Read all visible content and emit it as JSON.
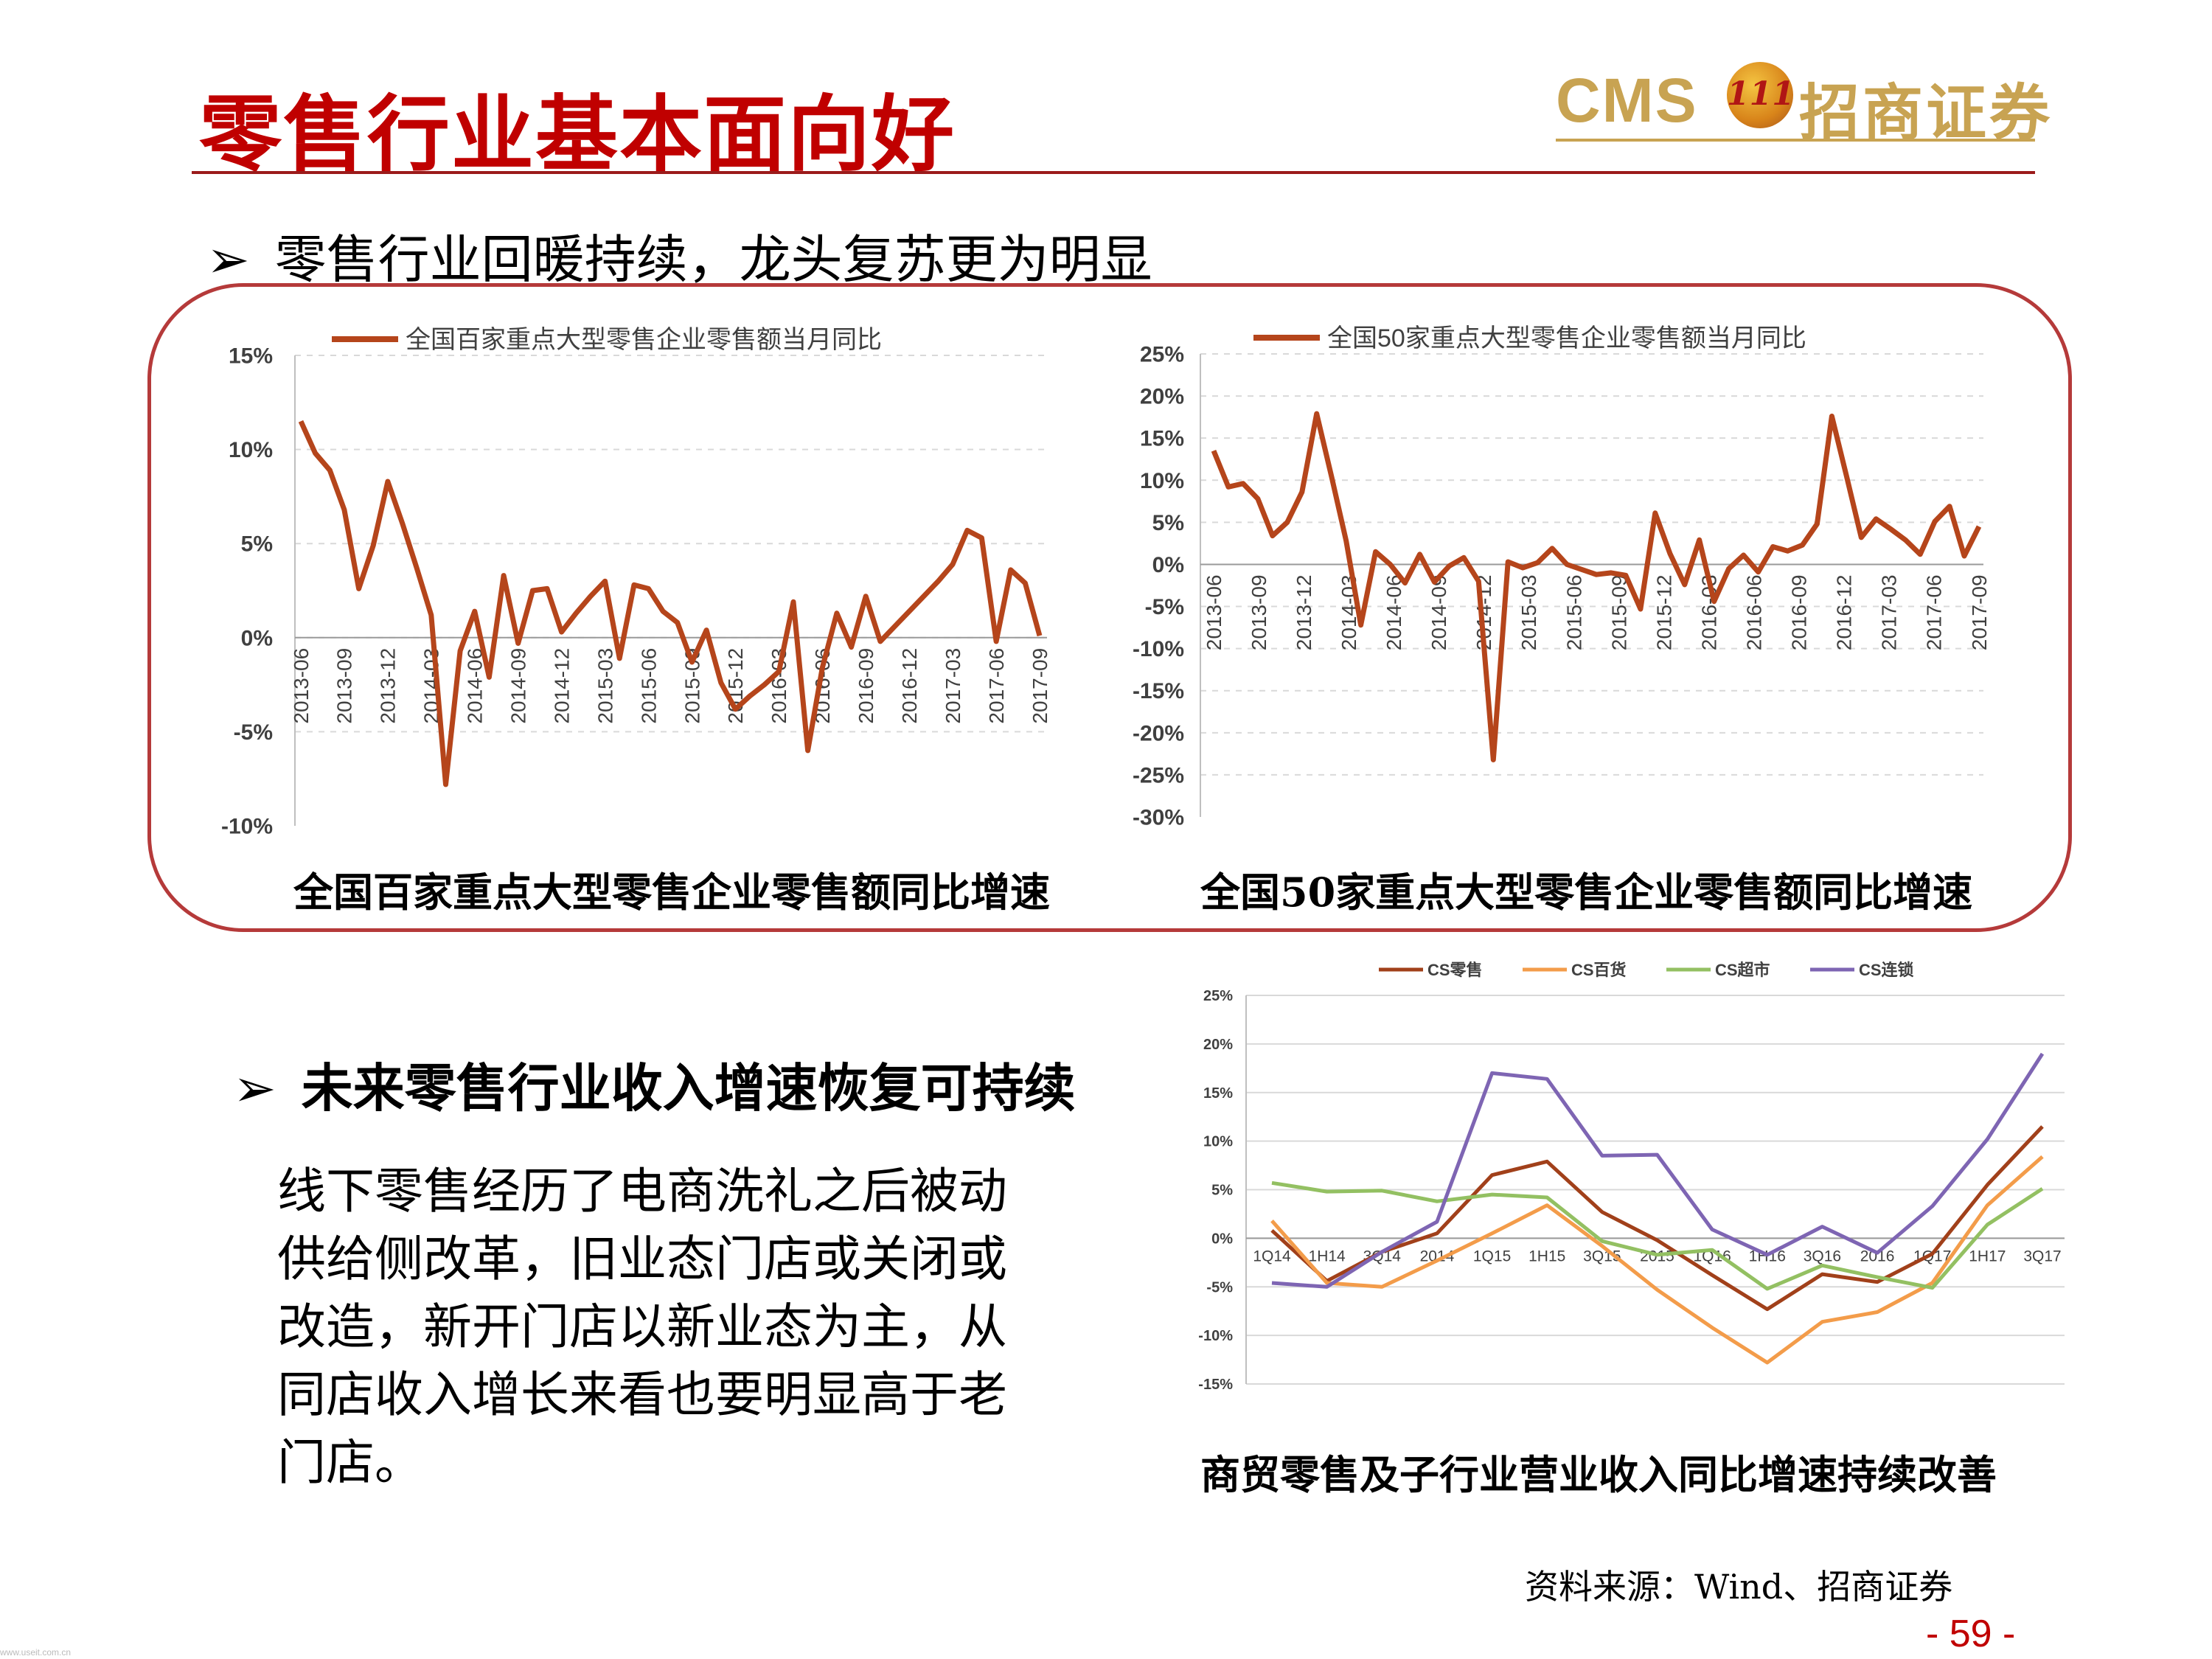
{
  "header": {
    "title": "零售行业基本面向好",
    "logo_cms": "CMS",
    "logo_badge": "111",
    "logo_cn": "招商证券"
  },
  "bullets": {
    "b1": "零售行业回暖持续，龙头复苏更为明显",
    "b2": "未来零售行业收入增速恢复可持续",
    "arrow": "➢"
  },
  "paragraph": [
    "线下零售经历了电商洗礼之后被动",
    "供给侧改革，旧业态门店或关闭或",
    "改造，新开门店以新业态为主，从",
    "同店收入增长来看也要明显高于老",
    "门店。"
  ],
  "captions": {
    "chart1": "全国百家重点大型零售企业零售额同比增速",
    "chart2": "全国50家重点大型零售企业零售额同比增速",
    "chart3": "商贸零售及子行业营业收入同比增速持续改善"
  },
  "footer": {
    "source": "资料来源：Wind、招商证券",
    "page": "- 59 -",
    "watermark": "www.useit.com.cn"
  },
  "colors": {
    "title_red": "#c00000",
    "series_brown": "#b5451b",
    "logo_gold": "#c8a352",
    "frame": "#b53a3a"
  },
  "chart_data": [
    {
      "type": "line",
      "title": "",
      "legend": "全国百家重点大型零售企业零售额当月同比",
      "legend_position": "top",
      "ylim": [
        -10,
        15
      ],
      "yticks": [
        "15%",
        "10%",
        "5%",
        "0%",
        "-5%",
        "-10%"
      ],
      "ytick_values": [
        15,
        10,
        5,
        0,
        -5,
        -10
      ],
      "xticks": [
        "2013-06",
        "2013-09",
        "2013-12",
        "2014-03",
        "2014-06",
        "2014-09",
        "2014-12",
        "2015-03",
        "2015-06",
        "2015-09",
        "2015-12",
        "2016-03",
        "2016-06",
        "2016-09",
        "2016-12",
        "2017-03",
        "2017-06",
        "2017-09"
      ],
      "grid": true,
      "series": [
        {
          "name": "全国百家重点大型零售企业零售额当月同比",
          "color": "#b5451b",
          "values": [
            11.5,
            9.8,
            8.9,
            6.8,
            2.6,
            4.9,
            8.3,
            6.1,
            3.7,
            1.2,
            -7.8,
            -0.7,
            1.4,
            -2.1,
            3.3,
            -0.3,
            2.5,
            2.6,
            0.3,
            1.3,
            2.2,
            3.0,
            -1.1,
            2.8,
            2.6,
            1.4,
            0.8,
            -1.3,
            0.4,
            -2.4,
            -3.8,
            -3.1,
            -2.5,
            -1.8,
            1.9,
            -6.0,
            -1.6,
            1.3,
            -0.5,
            2.2,
            -0.2,
            0.6,
            1.4,
            2.2,
            3.0,
            3.9,
            5.7,
            5.3,
            -0.2,
            3.6,
            2.9,
            0.1
          ]
        }
      ]
    },
    {
      "type": "line",
      "title": "",
      "legend": "全国50家重点大型零售企业零售额当月同比",
      "legend_position": "top",
      "ylim": [
        -30,
        25
      ],
      "yticks": [
        "25%",
        "20%",
        "15%",
        "10%",
        "5%",
        "0%",
        "-5%",
        "-10%",
        "-15%",
        "-20%",
        "-25%",
        "-30%"
      ],
      "ytick_values": [
        25,
        20,
        15,
        10,
        5,
        0,
        -5,
        -10,
        -15,
        -20,
        -25,
        -30
      ],
      "xticks": [
        "2013-06",
        "2013-09",
        "2013-12",
        "2014-03",
        "2014-06",
        "2014-09",
        "2014-12",
        "2015-03",
        "2015-06",
        "2015-09",
        "2015-12",
        "2016-03",
        "2016-06",
        "2016-09",
        "2016-12",
        "2017-03",
        "2017-06",
        "2017-09"
      ],
      "grid": true,
      "series": [
        {
          "name": "全国50家重点大型零售企业零售额当月同比",
          "color": "#b5451b",
          "values": [
            13.5,
            9.2,
            9.6,
            7.8,
            3.4,
            5.0,
            8.6,
            17.9,
            10.5,
            2.8,
            -7.2,
            1.5,
            0.0,
            -2.2,
            1.2,
            -2.1,
            -0.2,
            0.8,
            -2.0,
            -23.2,
            0.3,
            -0.4,
            0.2,
            1.9,
            0.0,
            -0.6,
            -1.2,
            -1.0,
            -1.3,
            -5.3,
            6.1,
            1.3,
            -2.4,
            2.9,
            -4.4,
            -0.5,
            1.1,
            -0.9,
            2.1,
            1.6,
            2.3,
            4.8,
            17.6,
            10.5,
            3.2,
            5.4,
            4.2,
            2.9,
            1.2,
            5.1,
            6.9,
            1.0,
            4.5
          ]
        }
      ]
    },
    {
      "type": "line",
      "title": "",
      "legend_position": "top",
      "ylim": [
        -15,
        25
      ],
      "yticks": [
        "25%",
        "20%",
        "15%",
        "10%",
        "5%",
        "0%",
        "-5%",
        "-10%",
        "-15%"
      ],
      "ytick_values": [
        25,
        20,
        15,
        10,
        5,
        0,
        -5,
        -10,
        -15
      ],
      "categories": [
        "1Q14",
        "1H14",
        "3Q14",
        "2014",
        "1Q15",
        "1H15",
        "3Q15",
        "2015",
        "1Q16",
        "1H16",
        "3Q16",
        "2016",
        "1Q17",
        "1H17",
        "3Q17"
      ],
      "grid": true,
      "series": [
        {
          "name": "CS零售",
          "color": "#a1401a",
          "values": [
            0.8,
            -4.4,
            -1.4,
            0.5,
            6.5,
            7.9,
            2.7,
            -0.2,
            -3.8,
            -7.3,
            -3.7,
            -4.5,
            -1.6,
            5.5,
            11.5
          ]
        },
        {
          "name": "CS百货",
          "color": "#f39c4a",
          "values": [
            1.8,
            -4.6,
            -5.0,
            -2.3,
            0.5,
            3.4,
            -0.8,
            -5.3,
            -9.2,
            -12.8,
            -8.6,
            -7.6,
            -4.6,
            3.4,
            8.4
          ]
        },
        {
          "name": "CS超市",
          "color": "#93c062",
          "values": [
            5.7,
            4.8,
            4.9,
            3.8,
            4.5,
            4.2,
            -0.3,
            -1.7,
            -1.2,
            -5.2,
            -2.8,
            -4.0,
            -5.1,
            1.4,
            5.1
          ]
        },
        {
          "name": "CS连锁",
          "color": "#7e65b3",
          "values": [
            -4.6,
            -5.0,
            -1.4,
            1.7,
            17.0,
            16.4,
            8.5,
            8.6,
            0.9,
            -1.7,
            1.2,
            -1.5,
            3.3,
            10.2,
            19.0
          ]
        }
      ]
    }
  ]
}
